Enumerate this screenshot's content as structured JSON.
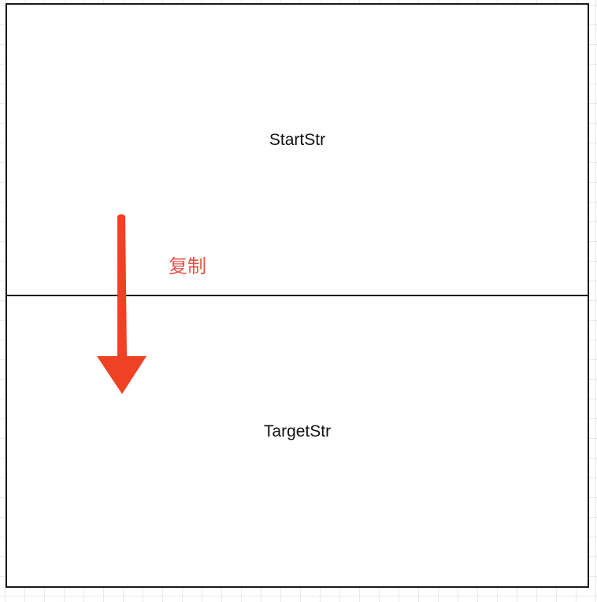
{
  "diagram": {
    "top_box": {
      "label": "StartStr"
    },
    "bottom_box": {
      "label": "TargetStr"
    },
    "arrow": {
      "label": "复制",
      "direction": "down",
      "color": "#ef4123",
      "label_color": "#e8534a"
    }
  }
}
